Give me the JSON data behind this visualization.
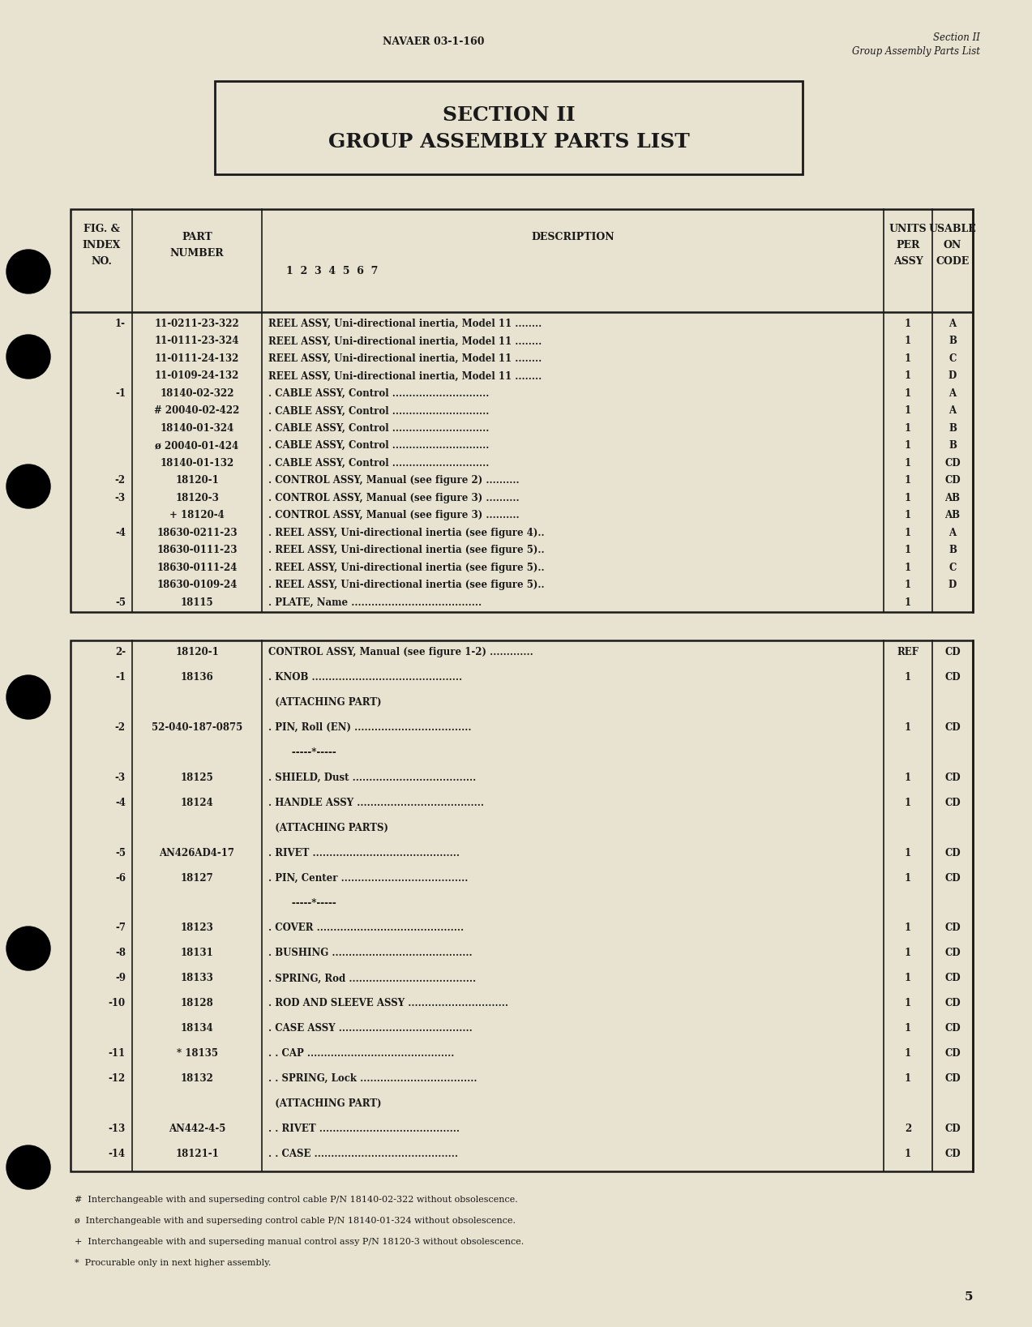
{
  "bg_color": "#e8e3d0",
  "page_num": "5",
  "header_center": "NAVAER 03-1-160",
  "header_right_line1": "Section II",
  "header_right_line2": "Group Assembly Parts List",
  "section_title_line1": "SECTION II",
  "section_title_line2": "GROUP ASSEMBLY PARTS LIST",
  "table1_rows": [
    [
      "1-",
      "11-0211-23-322",
      "REEL ASSY, Uni-directional inertia, Model 11 ........",
      "1",
      "A"
    ],
    [
      "",
      "11-0111-23-324",
      "REEL ASSY, Uni-directional inertia, Model 11 ........",
      "1",
      "B"
    ],
    [
      "",
      "11-0111-24-132",
      "REEL ASSY, Uni-directional inertia, Model 11 ........",
      "1",
      "C"
    ],
    [
      "",
      "11-0109-24-132",
      "REEL ASSY, Uni-directional inertia, Model 11 ........",
      "1",
      "D"
    ],
    [
      "-1",
      "18140-02-322",
      ". CABLE ASSY, Control .............................",
      "1",
      "A"
    ],
    [
      "",
      "# 20040-02-422",
      ". CABLE ASSY, Control .............................",
      "1",
      "A"
    ],
    [
      "",
      "18140-01-324",
      ". CABLE ASSY, Control .............................",
      "1",
      "B"
    ],
    [
      "",
      "ø 20040-01-424",
      ". CABLE ASSY, Control .............................",
      "1",
      "B"
    ],
    [
      "",
      "18140-01-132",
      ". CABLE ASSY, Control .............................",
      "1",
      "CD"
    ],
    [
      "-2",
      "18120-1",
      ". CONTROL ASSY, Manual (see figure 2) ..........",
      "1",
      "CD"
    ],
    [
      "-3",
      "18120-3",
      ". CONTROL ASSY, Manual (see figure 3) ..........",
      "1",
      "AB"
    ],
    [
      "",
      "+ 18120-4",
      ". CONTROL ASSY, Manual (see figure 3) ..........",
      "1",
      "AB"
    ],
    [
      "-4",
      "18630-0211-23",
      ". REEL ASSY, Uni-directional inertia (see figure 4)..",
      "1",
      "A"
    ],
    [
      "",
      "18630-0111-23",
      ". REEL ASSY, Uni-directional inertia (see figure 5)..",
      "1",
      "B"
    ],
    [
      "",
      "18630-0111-24",
      ". REEL ASSY, Uni-directional inertia (see figure 5)..",
      "1",
      "C"
    ],
    [
      "",
      "18630-0109-24",
      ". REEL ASSY, Uni-directional inertia (see figure 5)..",
      "1",
      "D"
    ],
    [
      "-5",
      "18115",
      ". PLATE, Name .......................................",
      "1",
      ""
    ]
  ],
  "table2_rows": [
    [
      "2-",
      "18120-1",
      "CONTROL ASSY, Manual (see figure 1-2) .............",
      "REF",
      "CD"
    ],
    [
      "-1",
      "18136",
      ". KNOB .............................................",
      "1",
      "CD"
    ],
    [
      "",
      "",
      "  (ATTACHING PART)",
      "",
      ""
    ],
    [
      "-2",
      "52-040-187-0875",
      ". PIN, Roll (EN) ...................................",
      "1",
      "CD"
    ],
    [
      "",
      "",
      "       -----*-----",
      "",
      ""
    ],
    [
      "-3",
      "18125",
      ". SHIELD, Dust .....................................",
      "1",
      "CD"
    ],
    [
      "-4",
      "18124",
      ". HANDLE ASSY ......................................",
      "1",
      "CD"
    ],
    [
      "",
      "",
      "  (ATTACHING PARTS)",
      "",
      ""
    ],
    [
      "-5",
      "AN426AD4-17",
      ". RIVET ............................................",
      "1",
      "CD"
    ],
    [
      "-6",
      "18127",
      ". PIN, Center ......................................",
      "1",
      "CD"
    ],
    [
      "",
      "",
      "       -----*-----",
      "",
      ""
    ],
    [
      "-7",
      "18123",
      ". COVER ............................................",
      "1",
      "CD"
    ],
    [
      "-8",
      "18131",
      ". BUSHING ..........................................",
      "1",
      "CD"
    ],
    [
      "-9",
      "18133",
      ". SPRING, Rod ......................................",
      "1",
      "CD"
    ],
    [
      "-10",
      "18128",
      ". ROD AND SLEEVE ASSY ..............................",
      "1",
      "CD"
    ],
    [
      "",
      "18134",
      ". CASE ASSY ........................................",
      "1",
      "CD"
    ],
    [
      "-11",
      "* 18135",
      ". . CAP ............................................",
      "1",
      "CD"
    ],
    [
      "-12",
      "18132",
      ". . SPRING, Lock ...................................",
      "1",
      "CD"
    ],
    [
      "",
      "",
      "  (ATTACHING PART)",
      "",
      ""
    ],
    [
      "-13",
      "AN442-4-5",
      ". . RIVET ..........................................",
      "2",
      "CD"
    ],
    [
      "-14",
      "18121-1",
      ". . CASE ...........................................",
      "1",
      "CD"
    ]
  ],
  "footnotes": [
    "#  Interchangeable with and superseding control cable P/N 18140-02-322 without obsolescence.",
    "ø  Interchangeable with and superseding control cable P/N 18140-01-324 without obsolescence.",
    "+  Interchangeable with and superseding manual control assy P/N 18120-3 without obsolescence.",
    "*  Procurable only in next higher assembly."
  ]
}
